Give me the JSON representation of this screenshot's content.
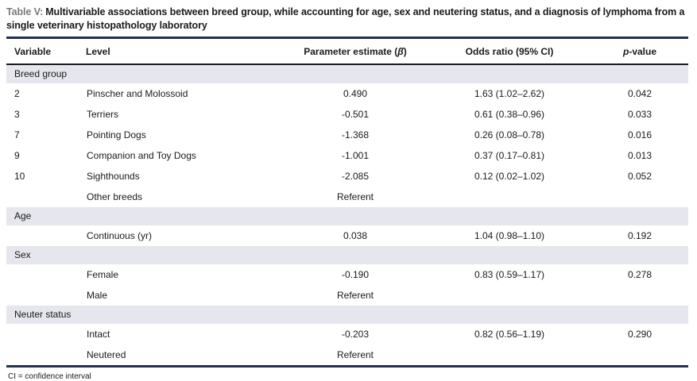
{
  "title": {
    "label": "Table V:",
    "text": "Multivariable associations between breed group, while accounting for age, sex and neutering status, and a diagnosis of lymphoma from a single veterinary histopathology laboratory"
  },
  "colors": {
    "rule_navy": "#232e55",
    "section_band": "#e6e6ee",
    "header_underline": "#1a1a1a",
    "title_label_gray": "#7a7a7a"
  },
  "table": {
    "header": {
      "variable": "Variable",
      "level": "Level",
      "param_prefix": "Parameter estimate (",
      "param_symbol": "β̂",
      "param_suffix": ")",
      "odds": "Odds ratio (95% CI)",
      "p_italic": "p",
      "p_rest": "-value"
    },
    "rows": [
      {
        "type": "section",
        "label": "Breed group"
      },
      {
        "type": "data",
        "variable": "2",
        "level": "Pinscher and Molossoid",
        "param": "0.490",
        "odds": "1.63 (1.02–2.62)",
        "p": "0.042"
      },
      {
        "type": "data",
        "variable": "3",
        "level": "Terriers",
        "param": "-0.501",
        "odds": "0.61 (0.38–0.96)",
        "p": "0.033"
      },
      {
        "type": "data",
        "variable": "7",
        "level": "Pointing Dogs",
        "param": "-1.368",
        "odds": "0.26 (0.08–0.78)",
        "p": "0.016"
      },
      {
        "type": "data",
        "variable": "9",
        "level": "Companion and Toy Dogs",
        "param": "-1.001",
        "odds": "0.37 (0.17–0.81)",
        "p": "0.013"
      },
      {
        "type": "data",
        "variable": "10",
        "level": "Sighthounds",
        "param": "-2.085",
        "odds": "0.12 (0.02–1.02)",
        "p": "0.052"
      },
      {
        "type": "data",
        "variable": "",
        "level": "Other breeds",
        "param": "Referent",
        "odds": "",
        "p": ""
      },
      {
        "type": "section",
        "label": "Age"
      },
      {
        "type": "data",
        "variable": "",
        "level": "Continuous (yr)",
        "param": "0.038",
        "odds": "1.04 (0.98–1.10)",
        "p": "0.192"
      },
      {
        "type": "section",
        "label": "Sex"
      },
      {
        "type": "data",
        "variable": "",
        "level": "Female",
        "param": "-0.190",
        "odds": "0.83 (0.59–1.17)",
        "p": "0.278"
      },
      {
        "type": "data",
        "variable": "",
        "level": "Male",
        "param": "Referent",
        "odds": "",
        "p": ""
      },
      {
        "type": "section",
        "label": "Neuter status"
      },
      {
        "type": "data",
        "variable": "",
        "level": "Intact",
        "param": "-0.203",
        "odds": "0.82 (0.56–1.19)",
        "p": "0.290"
      },
      {
        "type": "data",
        "variable": "",
        "level": "Neutered",
        "param": "Referent",
        "odds": "",
        "p": ""
      }
    ]
  },
  "footnote": "CI = confidence interval"
}
